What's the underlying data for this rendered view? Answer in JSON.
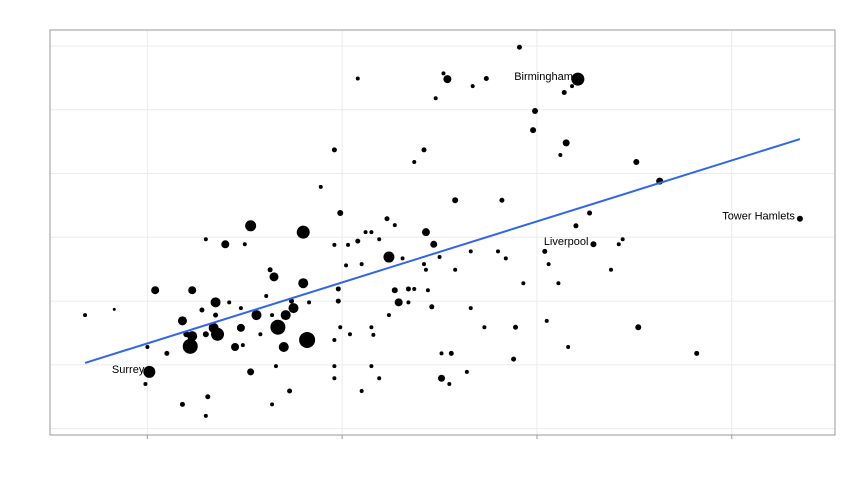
{
  "chart_data": {
    "type": "scatter",
    "xlim": [
      0.5,
      4.53
    ],
    "ylim": [
      -0.1,
      6.25
    ],
    "xticks": [
      1,
      2,
      3,
      4
    ],
    "yticks": [
      0,
      1,
      2,
      3,
      4,
      5,
      6
    ],
    "grid": true,
    "color": "#000000",
    "x": [
      2.91,
      2.08,
      2.52,
      2.54,
      2.67,
      2.74,
      3.21,
      3.14,
      3.18,
      2.48,
      2.99,
      2.98,
      3.15,
      3.12,
      1.96,
      2.42,
      2.37,
      3.51,
      3.63,
      1.89,
      2.58,
      2.82,
      1.99,
      3.27,
      1.53,
      2.23,
      2.27,
      1.8,
      2.43,
      2.12,
      2.15,
      3.2,
      1.3,
      1.4,
      1.5,
      1.96,
      2.03,
      2.08,
      2.19,
      2.47,
      3.04,
      3.29,
      3.42,
      3.44,
      2.24,
      2.31,
      2.66,
      2.8,
      2.84,
      1.63,
      1.65,
      2.02,
      2.1,
      2.42,
      2.5,
      2.58,
      2.43,
      3.06,
      3.38,
      1.04,
      1.23,
      1.8,
      1.98,
      2.27,
      2.34,
      2.37,
      2.44,
      2.93,
      3.11,
      1.35,
      1.42,
      1.61,
      1.74,
      1.83,
      1.98,
      2.29,
      2.34,
      2.46,
      0.68,
      0.83,
      1.28,
      1.48,
      1.56,
      1.75,
      1.64,
      1.71,
      2.24,
      2.66,
      1.18,
      1.35,
      1.34,
      1.48,
      1.67,
      1.58,
      3.05,
      1.2,
      1.23,
      1.3,
      1.36,
      1.99,
      2.15,
      2.04,
      2.16,
      2.73,
      2.89,
      3.52,
      1.0,
      1.1,
      1.22,
      1.45,
      1.49,
      1.7,
      1.82,
      1.96,
      2.51,
      2.56,
      3.16,
      3.82,
      1.01,
      0.99,
      1.53,
      1.66,
      1.96,
      2.15,
      2.88,
      2.51,
      2.55,
      1.96,
      2.19,
      2.64,
      1.18,
      1.31,
      1.64,
      1.73,
      2.1,
      1.3,
      4.35
    ],
    "y": [
      5.98,
      5.49,
      5.57,
      5.48,
      5.37,
      5.49,
      5.48,
      5.27,
      5.37,
      5.18,
      4.98,
      4.68,
      4.48,
      4.29,
      4.37,
      4.37,
      4.18,
      4.18,
      3.88,
      3.79,
      3.58,
      3.58,
      3.38,
      3.38,
      3.18,
      3.29,
      3.19,
      3.08,
      3.08,
      3.08,
      3.08,
      3.18,
      2.97,
      2.89,
      2.89,
      2.88,
      2.88,
      2.94,
      2.97,
      2.89,
      2.78,
      2.89,
      2.89,
      2.97,
      2.69,
      2.67,
      2.78,
      2.78,
      2.67,
      2.49,
      2.38,
      2.56,
      2.58,
      2.58,
      2.69,
      2.49,
      2.49,
      2.58,
      2.49,
      2.17,
      2.17,
      2.28,
      2.19,
      2.17,
      2.19,
      2.19,
      2.17,
      2.28,
      2.28,
      1.98,
      1.98,
      2.08,
      2.0,
      1.98,
      2.0,
      1.98,
      1.98,
      1.91,
      1.78,
      1.87,
      1.86,
      1.89,
      1.78,
      1.89,
      1.78,
      1.78,
      1.78,
      1.89,
      1.69,
      1.78,
      1.58,
      1.58,
      1.59,
      1.48,
      1.69,
      1.48,
      1.45,
      1.48,
      1.48,
      1.59,
      1.59,
      1.48,
      1.47,
      1.59,
      1.59,
      1.59,
      1.28,
      1.18,
      1.29,
      1.28,
      1.31,
      1.28,
      1.39,
      1.39,
      1.18,
      1.18,
      1.28,
      1.18,
      0.89,
      0.7,
      0.89,
      0.98,
      0.98,
      0.98,
      1.09,
      0.79,
      0.7,
      0.79,
      0.79,
      0.89,
      0.38,
      0.5,
      0.38,
      0.59,
      0.59,
      0.2,
      3.29
    ],
    "sizes": [
      2.5,
      2,
      2,
      4,
      2,
      2.5,
      6.5,
      2.5,
      2,
      2,
      3,
      3,
      3.5,
      2,
      2.5,
      2.5,
      2,
      3,
      3.5,
      2,
      3,
      2.5,
      3,
      2.5,
      5.5,
      2.5,
      2,
      6.5,
      4,
      2,
      2,
      2.5,
      2,
      4,
      2,
      2,
      2,
      2.5,
      2,
      3.5,
      2.5,
      3,
      2,
      2,
      5.5,
      2,
      2,
      2,
      2,
      2.5,
      4.5,
      2,
      2,
      2,
      2,
      2,
      2,
      2,
      2,
      4,
      4,
      5,
      2.5,
      3,
      2.5,
      2,
      2,
      2,
      2,
      5,
      2,
      2,
      2.5,
      2,
      2.5,
      4,
      2,
      2.5,
      2,
      1.5,
      2.5,
      2,
      5,
      5,
      2,
      5,
      2,
      2,
      4.5,
      2.5,
      5,
      4,
      7.5,
      2,
      2,
      3,
      5,
      3,
      6.5,
      2,
      2,
      2,
      2,
      2,
      2.5,
      3,
      2,
      2.5,
      7.5,
      4,
      2,
      5,
      8,
      2,
      2,
      2.5,
      2,
      2.5,
      6,
      2,
      3.5,
      2,
      2,
      2,
      2.5,
      3.5,
      2,
      2,
      2,
      2,
      2.5,
      2.5,
      2,
      2.5,
      2,
      2,
      3
    ],
    "trend": {
      "x": [
        0.68,
        4.35
      ],
      "y": [
        1.03,
        4.54
      ],
      "color": "#3366e6"
    },
    "annotations": [
      {
        "text": "Birmingham",
        "x": 3.21,
        "y": 5.48
      },
      {
        "text": "Liverpool",
        "x": 3.29,
        "y": 2.89
      },
      {
        "text": "Tower Hamlets",
        "x": 4.35,
        "y": 3.29
      },
      {
        "text": "Surrey",
        "x": 1.01,
        "y": 0.89
      }
    ]
  }
}
